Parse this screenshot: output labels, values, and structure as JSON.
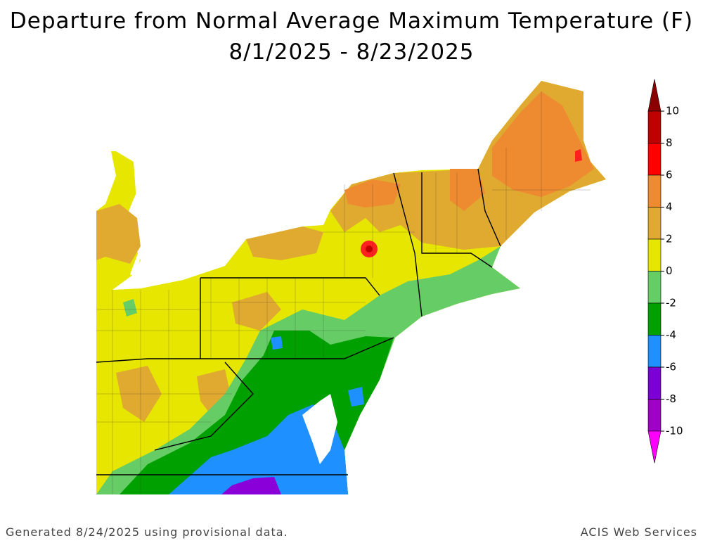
{
  "title": "Departure from Normal Average Maximum Temperature (F)",
  "subtitle": "8/1/2025 - 8/23/2025",
  "legend": {
    "ticks": [
      10,
      8,
      6,
      4,
      2,
      0,
      -2,
      -4,
      -6,
      -8,
      -10
    ],
    "colors": [
      "#8b0000",
      "#c00000",
      "#ff0000",
      "#ee8a30",
      "#e0aa30",
      "#e6e600",
      "#66cc66",
      "#00a000",
      "#1e90ff",
      "#7b00d8",
      "#a000c8",
      "#ff00ff"
    ]
  },
  "footer": {
    "left": "Generated 8/24/2025 using provisional data.",
    "right": "ACIS Web Services"
  }
}
